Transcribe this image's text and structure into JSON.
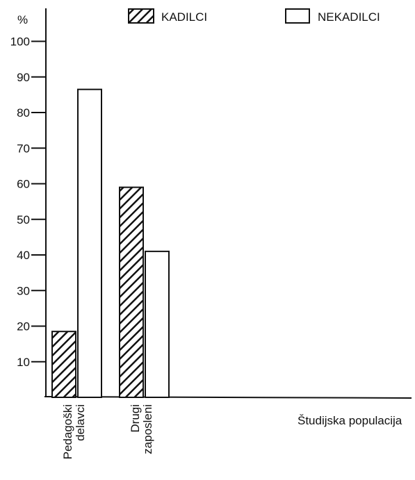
{
  "chart_data": {
    "type": "bar",
    "title": "",
    "ylabel": "%",
    "xlabel": "Študijska populacija",
    "ylim": [
      0,
      100
    ],
    "yticks": [
      10,
      20,
      30,
      40,
      50,
      60,
      70,
      80,
      90,
      100
    ],
    "grid": false,
    "legend_position": "top",
    "categories": [
      {
        "lines": [
          "Pedagoški",
          "delavci"
        ]
      },
      {
        "lines": [
          "Drugi",
          "zaposleni"
        ]
      }
    ],
    "series": [
      {
        "name": "KADILCI",
        "pattern": "hatched",
        "values": [
          18.5,
          59
        ]
      },
      {
        "name": "NEKADILCI",
        "pattern": "white",
        "values": [
          86.5,
          41
        ]
      }
    ],
    "colors": {
      "stroke": "#111111",
      "fill": "#ffffff"
    }
  }
}
